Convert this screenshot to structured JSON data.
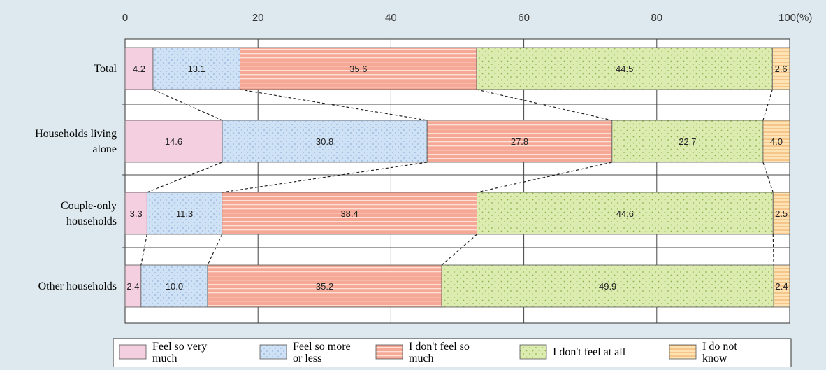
{
  "chart_data": {
    "type": "bar",
    "orientation": "horizontal",
    "stacked": true,
    "percent_stacked": true,
    "xlim": [
      0,
      100
    ],
    "x_ticks": [
      "0",
      "20",
      "40",
      "60",
      "80",
      "100(%)"
    ],
    "categories": [
      "Total",
      "Households living alone",
      "Couple-only households",
      "Other households"
    ],
    "category_lines": [
      [
        "Total"
      ],
      [
        "Households living",
        "alone"
      ],
      [
        "Couple-only",
        "households"
      ],
      [
        "Other households"
      ]
    ],
    "series": [
      {
        "name": "Feel so very much",
        "legend_lines": [
          "Feel so very",
          "much"
        ],
        "color": "#f4cfe0",
        "pattern": "solid",
        "values": [
          4.2,
          14.6,
          3.3,
          2.4
        ]
      },
      {
        "name": "Feel so more or less",
        "legend_lines": [
          "Feel so more",
          "or less"
        ],
        "color": "#cfe1f5",
        "pattern": "dots-blue",
        "values": [
          13.1,
          30.8,
          11.3,
          10.0
        ]
      },
      {
        "name": "I don't feel so much",
        "legend_lines": [
          "I don't feel so",
          "much"
        ],
        "color": "#f5a896",
        "pattern": "hstripes",
        "values": [
          35.6,
          27.8,
          38.4,
          35.2
        ]
      },
      {
        "name": "I don't feel at all",
        "legend_lines": [
          "I don't feel at all"
        ],
        "color": "#dcebb0",
        "pattern": "dots-green",
        "values": [
          44.5,
          22.7,
          44.6,
          49.9
        ]
      },
      {
        "name": "I do not know",
        "legend_lines": [
          "I do not",
          "know"
        ],
        "color": "#fde2b4",
        "pattern": "hstripes-orange",
        "values": [
          2.6,
          4.0,
          2.5,
          2.4
        ]
      }
    ],
    "value_labels": [
      [
        "4.2",
        "14.6",
        "3.3",
        "2.4"
      ],
      [
        "13.1",
        "30.8",
        "11.3",
        "10.0"
      ],
      [
        "35.6",
        "27.8",
        "38.4",
        "35.2"
      ],
      [
        "44.5",
        "22.7",
        "44.6",
        "49.9"
      ],
      [
        "2.6",
        "4.0",
        "2.5",
        "2.4"
      ]
    ],
    "connector_lines": true,
    "grid": true,
    "legend_position": "bottom"
  }
}
